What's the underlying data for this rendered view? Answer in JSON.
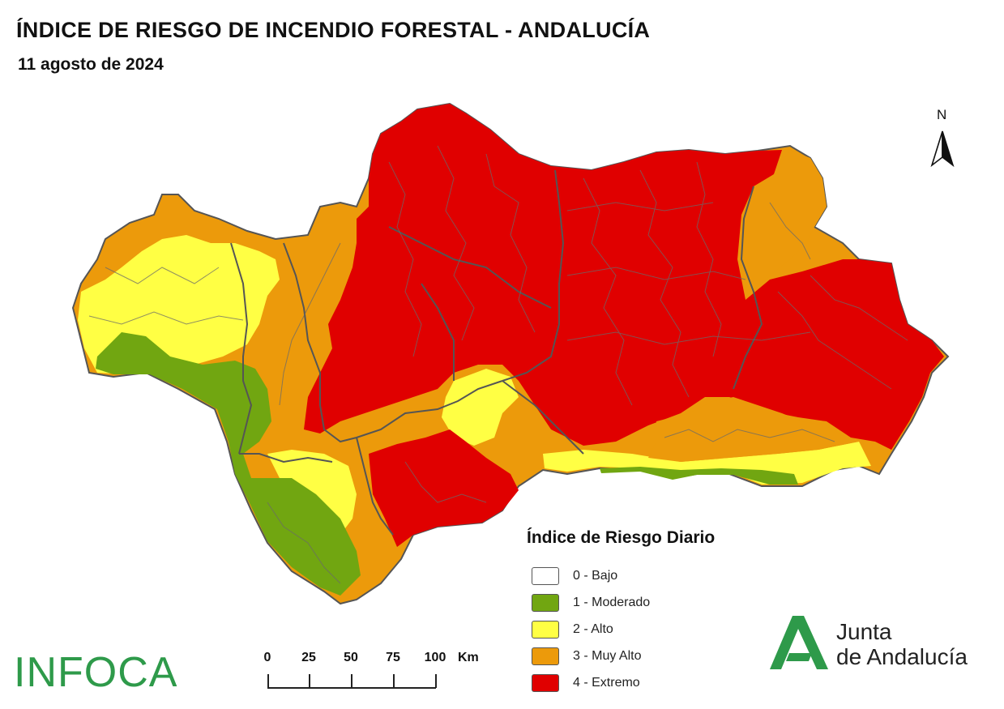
{
  "header": {
    "title": "ÍNDICE DE RIESGO DE INCENDIO FORESTAL - ANDALUCÍA",
    "date": "11 agosto de 2024"
  },
  "north_arrow": {
    "label": "N"
  },
  "legend": {
    "title": "Índice de Riesgo Diario",
    "items": [
      {
        "label": "0 - Bajo",
        "color": "#ffffff"
      },
      {
        "label": "1 - Moderado",
        "color": "#71a611"
      },
      {
        "label": "2 - Alto",
        "color": "#ffff44"
      },
      {
        "label": "3 - Muy Alto",
        "color": "#ec9a0b"
      },
      {
        "label": "4 - Extremo",
        "color": "#e00000"
      }
    ]
  },
  "scale_bar": {
    "ticks": [
      "0",
      "25",
      "50",
      "75",
      "100"
    ],
    "unit": "Km"
  },
  "logos": {
    "infoca": "INFOCA",
    "junta_line1": "Junta",
    "junta_line2": "de Andalucía",
    "junta_color": "#2e9a4a"
  },
  "map_colors": {
    "border": "#666666"
  }
}
